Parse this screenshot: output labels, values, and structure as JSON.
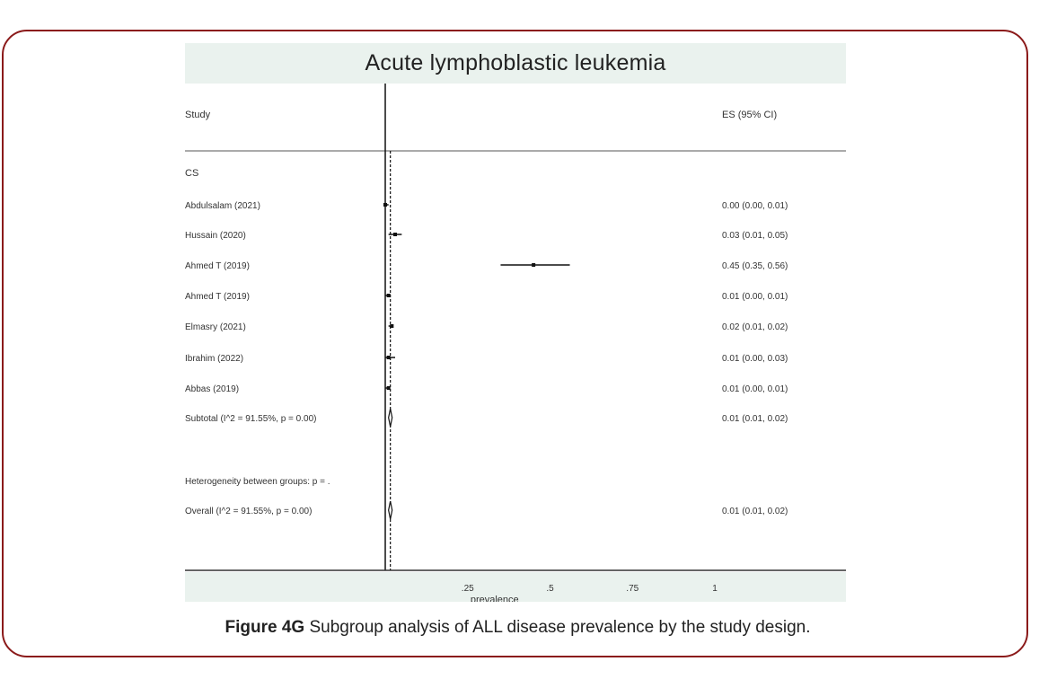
{
  "caption": {
    "label": "Figure 4G",
    "text": " Subgroup analysis of ALL disease prevalence by the study design."
  },
  "chart_data": {
    "type": "forest",
    "title": "Acute lymphoblastic leukemia",
    "header_left": "Study",
    "header_right": "ES (95% CI)",
    "group_label": "CS",
    "xlabel": "prevalence",
    "xticks": [
      ".25",
      ".5",
      ".75",
      "1"
    ],
    "xlim": [
      0,
      1
    ],
    "rows": [
      {
        "label": "Abdulsalam (2021)",
        "es": 0.0,
        "lo": 0.0,
        "hi": 0.01,
        "ci_text": "0.00 (0.00, 0.01)",
        "type": "study"
      },
      {
        "label": "Hussain (2020)",
        "es": 0.03,
        "lo": 0.01,
        "hi": 0.05,
        "ci_text": "0.03 (0.01, 0.05)",
        "type": "study"
      },
      {
        "label": "Ahmed T (2019)",
        "es": 0.45,
        "lo": 0.35,
        "hi": 0.56,
        "ci_text": "0.45 (0.35, 0.56)",
        "type": "study"
      },
      {
        "label": "Ahmed T (2019)",
        "es": 0.01,
        "lo": 0.0,
        "hi": 0.01,
        "ci_text": "0.01 (0.00, 0.01)",
        "type": "study"
      },
      {
        "label": "Elmasry (2021)",
        "es": 0.02,
        "lo": 0.01,
        "hi": 0.02,
        "ci_text": "0.02 (0.01, 0.02)",
        "type": "study"
      },
      {
        "label": "Ibrahim (2022)",
        "es": 0.01,
        "lo": 0.0,
        "hi": 0.03,
        "ci_text": "0.01 (0.00, 0.03)",
        "type": "study"
      },
      {
        "label": "Abbas (2019)",
        "es": 0.01,
        "lo": 0.0,
        "hi": 0.01,
        "ci_text": "0.01 (0.00, 0.01)",
        "type": "study"
      },
      {
        "label": "Subtotal (I^2 = 91.55%, p = 0.00)",
        "es": 0.01,
        "lo": 0.01,
        "hi": 0.02,
        "ci_text": "0.01 (0.01, 0.02)",
        "type": "subtotal"
      },
      {
        "label": "Heterogeneity between groups: p = .",
        "ci_text": "",
        "type": "note"
      },
      {
        "label": "Overall (I^2 = 91.55%, p = 0.00)",
        "es": 0.01,
        "lo": 0.01,
        "hi": 0.02,
        "ci_text": "0.01 (0.01, 0.02)",
        "type": "overall"
      }
    ],
    "null_line": 0,
    "pooled_line": 0.01
  }
}
